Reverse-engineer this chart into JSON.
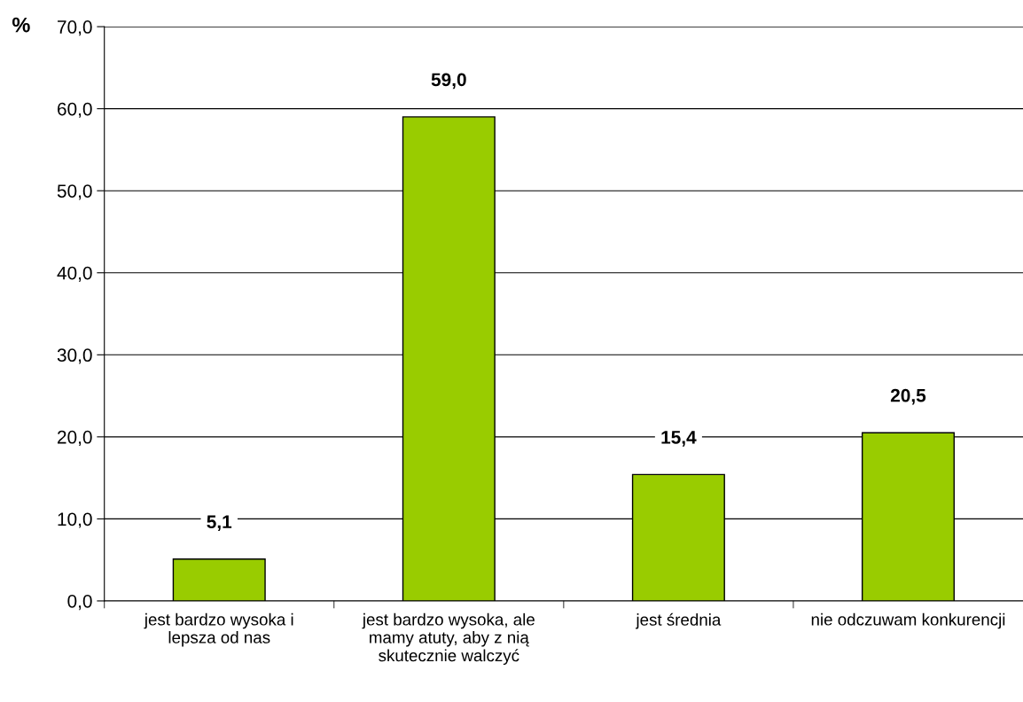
{
  "chart_data": {
    "type": "bar",
    "ylabel": "%",
    "categories": [
      "jest bardzo wysoka i\nlepsza od nas",
      "jest bardzo wysoka, ale\nmamy atuty, aby z nią\nskutecznie walczyć",
      "jest średnia",
      "nie odczuwam konkurencji"
    ],
    "values": [
      5.1,
      59.0,
      15.4,
      20.5
    ],
    "value_labels": [
      "5,1",
      "59,0",
      "15,4",
      "20,5"
    ],
    "color": "#99cc00",
    "ylim": [
      0,
      70
    ],
    "yticks": [
      {
        "value": 0,
        "label": "0,0"
      },
      {
        "value": 10,
        "label": "10,0"
      },
      {
        "value": 20,
        "label": "20,0"
      },
      {
        "value": 30,
        "label": "30,0"
      },
      {
        "value": 40,
        "label": "40,0"
      },
      {
        "value": 50,
        "label": "50,0"
      },
      {
        "value": 60,
        "label": "60,0"
      },
      {
        "value": 70,
        "label": "70,0"
      }
    ],
    "grid": "y",
    "legend": false
  }
}
